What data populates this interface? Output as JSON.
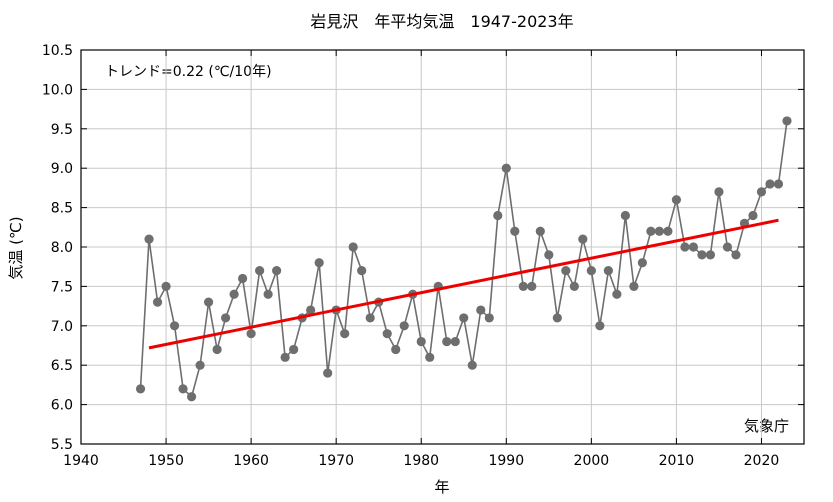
{
  "chart_data": {
    "type": "line",
    "title": "岩見沢　年平均気温　1947-2023年",
    "xlabel": "年",
    "ylabel": "気温 (℃)",
    "trend_label": "トレンド=0.22 (℃/10年)",
    "source_label": "気象庁",
    "xlim": [
      1940,
      2025
    ],
    "ylim": [
      5.5,
      10.5
    ],
    "x_ticks": [
      1940,
      1950,
      1960,
      1970,
      1980,
      1990,
      2000,
      2010,
      2020
    ],
    "y_ticks": [
      5.5,
      6.0,
      6.5,
      7.0,
      7.5,
      8.0,
      8.5,
      9.0,
      9.5,
      10.0,
      10.5
    ],
    "grid": true,
    "series": [
      {
        "kind": "annual",
        "color": "#6e6e6e",
        "x": [
          1947,
          1948,
          1949,
          1950,
          1951,
          1952,
          1953,
          1954,
          1955,
          1956,
          1957,
          1958,
          1959,
          1960,
          1961,
          1962,
          1963,
          1964,
          1965,
          1966,
          1967,
          1968,
          1969,
          1970,
          1971,
          1972,
          1973,
          1974,
          1975,
          1976,
          1977,
          1978,
          1979,
          1980,
          1981,
          1982,
          1983,
          1984,
          1985,
          1986,
          1987,
          1988,
          1989,
          1990,
          1991,
          1992,
          1993,
          1994,
          1995,
          1996,
          1997,
          1998,
          1999,
          2000,
          2001,
          2002,
          2003,
          2004,
          2005,
          2006,
          2007,
          2008,
          2009,
          2010,
          2011,
          2012,
          2013,
          2014,
          2015,
          2016,
          2017,
          2018,
          2019,
          2020,
          2021,
          2022,
          2023
        ],
        "y": [
          6.2,
          8.1,
          7.3,
          7.5,
          7.0,
          6.2,
          6.1,
          6.5,
          7.3,
          6.7,
          7.1,
          7.4,
          7.6,
          6.9,
          7.7,
          7.4,
          7.7,
          6.6,
          6.7,
          7.1,
          7.2,
          7.8,
          6.4,
          7.2,
          6.9,
          8.0,
          7.7,
          7.1,
          7.3,
          6.9,
          6.7,
          7.0,
          7.4,
          6.8,
          6.6,
          7.5,
          6.8,
          6.8,
          7.1,
          6.5,
          7.2,
          7.1,
          8.4,
          9.0,
          8.2,
          7.5,
          7.5,
          8.2,
          7.9,
          7.1,
          7.7,
          7.5,
          8.1,
          7.7,
          7.0,
          7.7,
          7.4,
          8.4,
          7.5,
          7.8,
          8.2,
          8.2,
          8.2,
          8.6,
          8.0,
          8.0,
          7.9,
          7.9,
          8.7,
          8.0,
          7.9,
          8.3,
          8.4,
          8.7,
          8.8,
          8.8,
          9.6
        ]
      },
      {
        "kind": "trend",
        "color": "#ee0000",
        "x": [
          1948,
          2022
        ],
        "y": [
          6.72,
          8.34
        ]
      }
    ]
  }
}
